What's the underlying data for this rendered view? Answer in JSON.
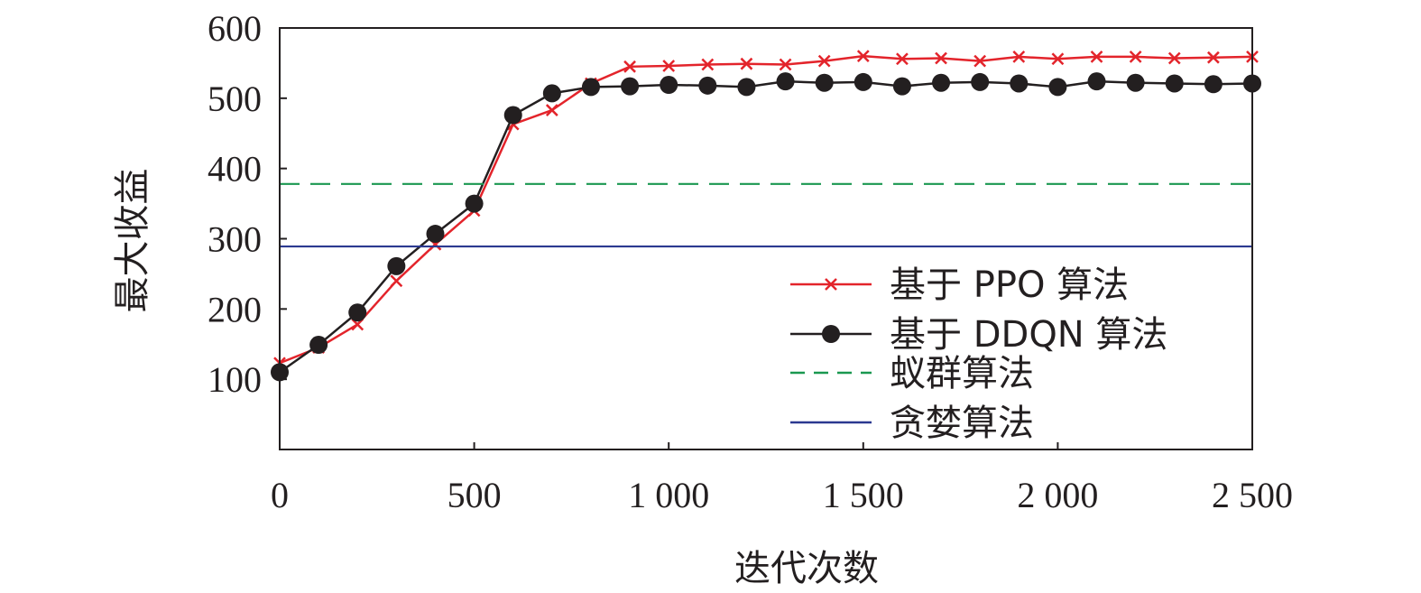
{
  "chart_data": {
    "type": "line",
    "title": "",
    "xlabel": "迭代次数",
    "ylabel": "最大收益",
    "xlim": [
      0,
      2500
    ],
    "ylim": [
      0,
      600
    ],
    "x_ticks": [
      0,
      500,
      1000,
      1500,
      2000,
      2500
    ],
    "x_tick_labels": [
      "0",
      "500",
      "1 000",
      "1 500",
      "2 000",
      "2 500"
    ],
    "y_ticks": [
      100,
      200,
      300,
      400,
      500,
      600
    ],
    "y_tick_labels": [
      "100",
      "200",
      "300",
      "400",
      "500",
      "600"
    ],
    "grid": false,
    "legend_position": "bottom-right",
    "x": [
      0,
      100,
      200,
      300,
      400,
      500,
      600,
      700,
      800,
      900,
      1000,
      1100,
      1200,
      1300,
      1400,
      1500,
      1600,
      1700,
      1800,
      1900,
      2000,
      2100,
      2200,
      2300,
      2400,
      2500
    ],
    "series": [
      {
        "name": "基于 PPO 算法",
        "color": "#e3242b",
        "marker": "x",
        "values": [
          123,
          145,
          178,
          240,
          292,
          340,
          463,
          483,
          521,
          545,
          546,
          548,
          549,
          548,
          553,
          560,
          556,
          557,
          553,
          559,
          556,
          559,
          559,
          557,
          558,
          559
        ]
      },
      {
        "name": "基于 DDQN 算法",
        "color": "#231f20",
        "marker": "circle",
        "values": [
          110,
          149,
          195,
          261,
          307,
          350,
          476,
          507,
          516,
          517,
          519,
          518,
          516,
          524,
          522,
          523,
          517,
          522,
          523,
          521,
          516,
          524,
          522,
          521,
          520,
          521
        ]
      },
      {
        "name": "蚁群算法",
        "color": "#1a9850",
        "style": "dashed",
        "constant": 378
      },
      {
        "name": "贪婪算法",
        "color": "#2b3990",
        "style": "solid",
        "constant": 289
      }
    ]
  }
}
